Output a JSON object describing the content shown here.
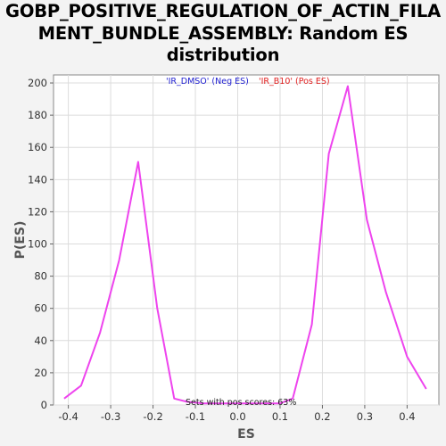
{
  "chart_data": {
    "type": "line",
    "title_lines": [
      "GOBP_POSITIVE_REGULATION_OF_ACTIN_FILA",
      "MENT_BUNDLE_ASSEMBLY: Random ES",
      "distribution"
    ],
    "xlabel": "ES",
    "ylabel": "P(ES)",
    "xlim": [
      -0.435,
      0.475
    ],
    "ylim": [
      0,
      205
    ],
    "xticks": [
      -0.4,
      -0.3,
      -0.2,
      -0.1,
      0.0,
      0.1,
      0.2,
      0.3,
      0.4
    ],
    "xtick_labels": [
      "-0.4",
      "-0.3",
      "-0.2",
      "-0.1",
      "0.0",
      "0.1",
      "0.2",
      "0.3",
      "0.4"
    ],
    "yticks": [
      0,
      20,
      40,
      60,
      80,
      100,
      120,
      140,
      160,
      180,
      200
    ],
    "ytick_labels": [
      "0",
      "20",
      "40",
      "60",
      "80",
      "100",
      "120",
      "140",
      "160",
      "180",
      "200"
    ],
    "grid": true,
    "legend": [
      {
        "label": "'IR_DMSO' (Neg ES)",
        "color": "#2020d0"
      },
      {
        "label": "'IR_B10' (Pos ES)",
        "color": "#e02020"
      }
    ],
    "annotation": "Sets with pos scores: 63%",
    "series": [
      {
        "color": "#ee44ee",
        "x": [
          -0.41,
          -0.37,
          -0.325,
          -0.28,
          -0.235,
          -0.19,
          -0.15,
          -0.12,
          -0.08,
          -0.03,
          0.02,
          0.07,
          0.1,
          0.13,
          0.175,
          0.215,
          0.26,
          0.305,
          0.35,
          0.4,
          0.445
        ],
        "y": [
          4,
          12,
          45,
          90,
          151,
          60,
          4,
          2,
          1,
          1,
          1,
          1,
          1,
          4,
          50,
          156,
          198,
          115,
          70,
          30,
          10
        ]
      }
    ]
  }
}
